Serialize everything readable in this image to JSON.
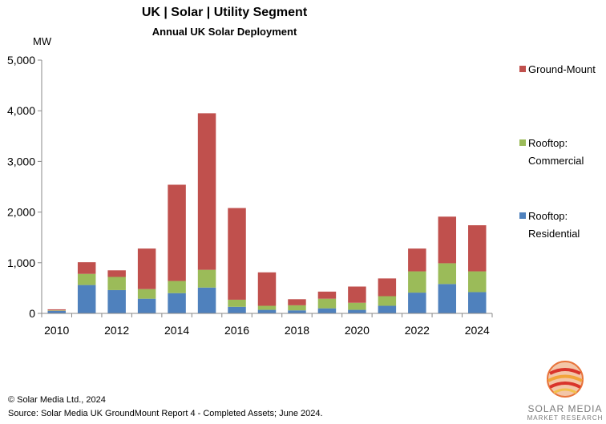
{
  "chart_data": {
    "type": "bar",
    "stacked": true,
    "title": "UK | Solar | Utility Segment",
    "subtitle": "Annual UK Solar Deployment",
    "ylabel": "MW",
    "ylim": [
      0,
      5000
    ],
    "yticks": [
      "0",
      "1,000",
      "2,000",
      "3,000",
      "4,000",
      "5,000"
    ],
    "ytick_values": [
      0,
      1000,
      2000,
      3000,
      4000,
      5000
    ],
    "categories": [
      2010,
      2011,
      2012,
      2013,
      2014,
      2015,
      2016,
      2017,
      2018,
      2019,
      2020,
      2021,
      2022,
      2023,
      2024
    ],
    "xtick_labels": [
      "2010",
      "",
      "2012",
      "",
      "2014",
      "",
      "2016",
      "",
      "2018",
      "",
      "2020",
      "",
      "2022",
      "",
      "2024"
    ],
    "series": [
      {
        "name": "Rooftop: Residential",
        "color": "#4f81bd",
        "values": [
          50,
          560,
          460,
          290,
          400,
          510,
          130,
          70,
          60,
          100,
          70,
          150,
          410,
          580,
          420
        ]
      },
      {
        "name": "Rooftop: Commercial",
        "color": "#9bbb59",
        "values": [
          10,
          220,
          260,
          190,
          240,
          350,
          140,
          80,
          100,
          190,
          140,
          190,
          420,
          410,
          410
        ]
      },
      {
        "name": "Ground-Mount",
        "color": "#c0504d",
        "values": [
          20,
          230,
          130,
          800,
          1900,
          3090,
          1810,
          660,
          120,
          140,
          320,
          350,
          450,
          920,
          910
        ]
      }
    ]
  },
  "legend": {
    "ground": {
      "label": "Ground-Mount",
      "color": "#c0504d"
    },
    "commercial": {
      "line1": "Rooftop:",
      "line2": "Commercial",
      "color": "#9bbb59"
    },
    "residential": {
      "line1": "Rooftop:",
      "line2": "Residential",
      "color": "#4f81bd"
    }
  },
  "footer": {
    "copyright": "© Solar Media Ltd., 2024",
    "source": "Source: Solar Media UK GroundMount Report 4 - Completed  Assets; June 2024."
  },
  "logo": {
    "line1": "SOLAR MEDIA",
    "line2": "MARKET RESEARCH"
  }
}
